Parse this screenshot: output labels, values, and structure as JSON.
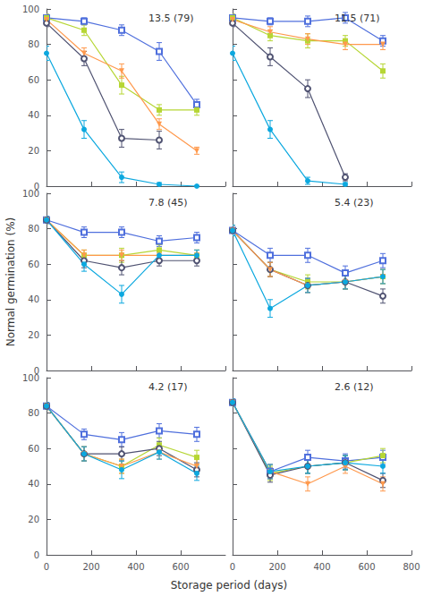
{
  "xlabel": "Storage period (days)",
  "ylabel": "Normal germination (%)",
  "chart_data": [
    {
      "type": "line",
      "annotation": "13.5 (79)",
      "xlim": [
        0,
        800
      ],
      "ylim": [
        0,
        100
      ],
      "xticks": [
        0,
        200,
        400,
        600,
        800
      ],
      "yticks": [
        0,
        20,
        40,
        60,
        80,
        100
      ],
      "grid": false,
      "tick_labels": "y",
      "series": [
        {
          "marker": "square_open",
          "x": [
            0,
            168,
            336,
            504,
            672
          ],
          "values": [
            95,
            93,
            88,
            76,
            46
          ],
          "yerr": [
            2,
            2,
            3,
            5,
            3
          ]
        },
        {
          "marker": "square",
          "x": [
            0,
            168,
            336,
            504,
            672
          ],
          "values": [
            95,
            88,
            57,
            43,
            43
          ],
          "yerr": [
            2,
            3,
            5,
            3,
            3
          ]
        },
        {
          "marker": "circle_open",
          "x": [
            0,
            168,
            336,
            504
          ],
          "values": [
            92,
            72,
            27,
            26
          ],
          "yerr": [
            2,
            4,
            5,
            5
          ]
        },
        {
          "marker": "triangle_down",
          "x": [
            0,
            168,
            336,
            504,
            672
          ],
          "values": [
            94,
            75,
            65,
            35,
            20
          ],
          "yerr": [
            2,
            3,
            4,
            3,
            2
          ]
        },
        {
          "marker": "circle",
          "x": [
            0,
            168,
            336,
            504,
            672
          ],
          "values": [
            75,
            32,
            5,
            1,
            0
          ],
          "yerr": [
            4,
            5,
            3,
            1,
            0
          ]
        }
      ]
    },
    {
      "type": "line",
      "annotation": "11.5 (71)",
      "xlim": [
        0,
        800
      ],
      "ylim": [
        0,
        100
      ],
      "xticks": [
        0,
        200,
        400,
        600,
        800
      ],
      "yticks": [
        0,
        20,
        40,
        60,
        80,
        100
      ],
      "grid": false,
      "tick_labels": false,
      "series": [
        {
          "marker": "square_open",
          "x": [
            0,
            168,
            336,
            504,
            672
          ],
          "values": [
            95,
            93,
            93,
            95,
            82
          ],
          "yerr": [
            2,
            2,
            3,
            3,
            3
          ]
        },
        {
          "marker": "square",
          "x": [
            0,
            168,
            336,
            504,
            672
          ],
          "values": [
            95,
            85,
            82,
            82,
            65
          ],
          "yerr": [
            2,
            3,
            4,
            3,
            4
          ]
        },
        {
          "marker": "circle_open",
          "x": [
            0,
            168,
            336,
            504
          ],
          "values": [
            92,
            73,
            55,
            5
          ],
          "yerr": [
            2,
            5,
            5,
            2
          ]
        },
        {
          "marker": "triangle_down",
          "x": [
            0,
            168,
            336,
            504,
            672
          ],
          "values": [
            94,
            87,
            83,
            80,
            80
          ],
          "yerr": [
            2,
            3,
            3,
            3,
            3
          ]
        },
        {
          "marker": "circle",
          "x": [
            0,
            168,
            336,
            504
          ],
          "values": [
            75,
            32,
            3,
            1
          ],
          "yerr": [
            4,
            5,
            2,
            1
          ]
        }
      ]
    },
    {
      "type": "line",
      "annotation": "7.8 (45)",
      "xlim": [
        0,
        800
      ],
      "ylim": [
        0,
        100
      ],
      "xticks": [
        0,
        200,
        400,
        600,
        800
      ],
      "yticks": [
        0,
        20,
        40,
        60,
        80,
        100
      ],
      "grid": false,
      "tick_labels": "y",
      "series": [
        {
          "marker": "square_open",
          "x": [
            0,
            168,
            336,
            504,
            672
          ],
          "values": [
            85,
            78,
            78,
            73,
            75
          ],
          "yerr": [
            2,
            3,
            3,
            3,
            3
          ]
        },
        {
          "marker": "square",
          "x": [
            0,
            168,
            336,
            504,
            672
          ],
          "values": [
            85,
            65,
            65,
            68,
            65
          ],
          "yerr": [
            2,
            3,
            4,
            3,
            3
          ]
        },
        {
          "marker": "circle_open",
          "x": [
            0,
            168,
            336,
            504,
            672
          ],
          "values": [
            85,
            62,
            58,
            62,
            62
          ],
          "yerr": [
            2,
            4,
            4,
            3,
            3
          ]
        },
        {
          "marker": "triangle_down",
          "x": [
            0,
            168,
            336,
            504,
            672
          ],
          "values": [
            85,
            65,
            65,
            65,
            65
          ],
          "yerr": [
            2,
            3,
            3,
            3,
            3
          ]
        },
        {
          "marker": "circle",
          "x": [
            0,
            168,
            336,
            504,
            672
          ],
          "values": [
            85,
            60,
            43,
            65,
            65
          ],
          "yerr": [
            2,
            4,
            5,
            3,
            3
          ]
        }
      ]
    },
    {
      "type": "line",
      "annotation": "5.4 (23)",
      "xlim": [
        0,
        800
      ],
      "ylim": [
        0,
        100
      ],
      "xticks": [
        0,
        200,
        400,
        600,
        800
      ],
      "yticks": [
        0,
        20,
        40,
        60,
        80,
        100
      ],
      "grid": false,
      "tick_labels": false,
      "series": [
        {
          "marker": "square_open",
          "x": [
            0,
            168,
            336,
            504,
            672
          ],
          "values": [
            79,
            65,
            65,
            55,
            62
          ],
          "yerr": [
            3,
            4,
            4,
            4,
            4
          ]
        },
        {
          "marker": "square",
          "x": [
            0,
            168,
            336,
            504,
            672
          ],
          "values": [
            79,
            57,
            50,
            50,
            53
          ],
          "yerr": [
            3,
            4,
            4,
            4,
            4
          ]
        },
        {
          "marker": "circle_open",
          "x": [
            0,
            168,
            336,
            504,
            672
          ],
          "values": [
            79,
            57,
            48,
            50,
            42
          ],
          "yerr": [
            3,
            4,
            4,
            4,
            4
          ]
        },
        {
          "marker": "triangle_down",
          "x": [
            0,
            168,
            336,
            504,
            672
          ],
          "values": [
            79,
            57,
            48,
            50,
            53
          ],
          "yerr": [
            3,
            4,
            4,
            4,
            4
          ]
        },
        {
          "marker": "circle",
          "x": [
            0,
            168,
            336,
            504,
            672
          ],
          "values": [
            79,
            35,
            48,
            50,
            53
          ],
          "yerr": [
            3,
            5,
            4,
            4,
            4
          ]
        }
      ]
    },
    {
      "type": "line",
      "annotation": "4.2 (17)",
      "xlim": [
        0,
        800
      ],
      "ylim": [
        0,
        100
      ],
      "xticks": [
        0,
        200,
        400,
        600
      ],
      "yticks": [
        0,
        20,
        40,
        60,
        80,
        100
      ],
      "grid": false,
      "tick_labels": true,
      "series": [
        {
          "marker": "square_open",
          "x": [
            0,
            168,
            336,
            504,
            672
          ],
          "values": [
            84,
            68,
            65,
            70,
            68
          ],
          "yerr": [
            2,
            3,
            4,
            4,
            4
          ]
        },
        {
          "marker": "square",
          "x": [
            0,
            168,
            336,
            504,
            672
          ],
          "values": [
            84,
            57,
            50,
            62,
            55
          ],
          "yerr": [
            2,
            4,
            4,
            4,
            4
          ]
        },
        {
          "marker": "circle_open",
          "x": [
            0,
            168,
            336,
            504,
            672
          ],
          "values": [
            84,
            57,
            57,
            60,
            48
          ],
          "yerr": [
            2,
            4,
            4,
            4,
            4
          ]
        },
        {
          "marker": "triangle_down",
          "x": [
            0,
            168,
            336,
            504,
            672
          ],
          "values": [
            84,
            57,
            50,
            58,
            50
          ],
          "yerr": [
            2,
            4,
            4,
            4,
            4
          ]
        },
        {
          "marker": "circle",
          "x": [
            0,
            168,
            336,
            504,
            672
          ],
          "values": [
            84,
            57,
            48,
            58,
            46
          ],
          "yerr": [
            2,
            4,
            5,
            4,
            4
          ]
        }
      ]
    },
    {
      "type": "line",
      "annotation": "2.6 (12)",
      "xlim": [
        0,
        800
      ],
      "ylim": [
        0,
        100
      ],
      "xticks": [
        0,
        200,
        400,
        600,
        800
      ],
      "yticks": [
        0,
        20,
        40,
        60,
        80,
        100
      ],
      "grid": false,
      "tick_labels": "x",
      "series": [
        {
          "marker": "square_open",
          "x": [
            0,
            168,
            336,
            504,
            672
          ],
          "values": [
            86,
            47,
            55,
            53,
            55
          ],
          "yerr": [
            2,
            4,
            4,
            4,
            4
          ]
        },
        {
          "marker": "square",
          "x": [
            0,
            168,
            336,
            504,
            672
          ],
          "values": [
            86,
            46,
            50,
            52,
            56
          ],
          "yerr": [
            2,
            4,
            4,
            4,
            4
          ]
        },
        {
          "marker": "circle_open",
          "x": [
            0,
            168,
            336,
            504,
            672
          ],
          "values": [
            86,
            45,
            50,
            52,
            42
          ],
          "yerr": [
            2,
            4,
            4,
            4,
            4
          ]
        },
        {
          "marker": "triangle_down",
          "x": [
            0,
            168,
            336,
            504,
            672
          ],
          "values": [
            86,
            47,
            40,
            50,
            40
          ],
          "yerr": [
            2,
            4,
            4,
            4,
            4
          ]
        },
        {
          "marker": "circle",
          "x": [
            0,
            168,
            336,
            504,
            672
          ],
          "values": [
            86,
            47,
            50,
            52,
            50
          ],
          "yerr": [
            2,
            4,
            4,
            4,
            4
          ]
        }
      ]
    }
  ]
}
